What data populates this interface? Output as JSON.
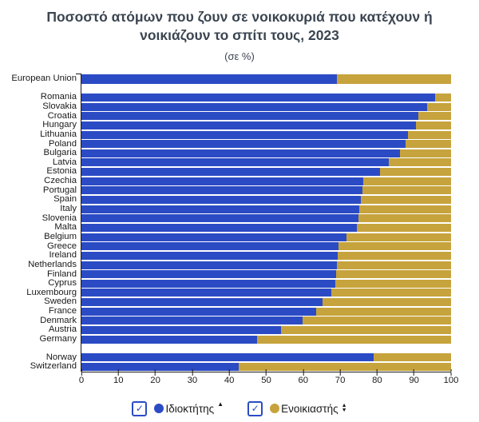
{
  "header": {
    "title": "Ποσοστό ατόμων που ζουν σε νοικοκυριά που κατέχουν ή νοικιάζουν το σπίτι τους, 2023",
    "subtitle": "(σε %)"
  },
  "colors": {
    "owner": "#2b4bc5",
    "renter": "#c6a33c",
    "title_text": "#3b4551",
    "axis_line": "#1a1a1a",
    "label_text": "#1a1a1a"
  },
  "legend": {
    "items": [
      {
        "label": "Ιδιοκτήτης",
        "color_key": "owner",
        "checked": true,
        "check_glyph": "✓",
        "sort_indicator": "up"
      },
      {
        "label": "Ενοικιαστής",
        "color_key": "renter",
        "checked": true,
        "check_glyph": "✓",
        "sort_indicator": "up-down"
      }
    ]
  },
  "chart_data": {
    "type": "bar",
    "orientation": "horizontal",
    "stacked": true,
    "unit": "%",
    "xlim": [
      0,
      100
    ],
    "x_ticks": [
      0,
      10,
      20,
      30,
      40,
      50,
      60,
      70,
      80,
      90,
      100
    ],
    "grid": false,
    "legend_position": "bottom",
    "series_names": [
      "Ιδιοκτήτης",
      "Ενοικιαστής"
    ],
    "groups": [
      {
        "name": "eu-aggregate",
        "rows": [
          {
            "category": "European Union",
            "owner": 69.2,
            "renter": 30.8
          }
        ]
      },
      {
        "name": "eu-members",
        "rows": [
          {
            "category": "Romania",
            "owner": 95.6,
            "renter": 4.4
          },
          {
            "category": "Slovakia",
            "owner": 93.6,
            "renter": 6.4
          },
          {
            "category": "Croatia",
            "owner": 91.1,
            "renter": 8.9
          },
          {
            "category": "Hungary",
            "owner": 90.4,
            "renter": 9.6
          },
          {
            "category": "Lithuania",
            "owner": 88.4,
            "renter": 11.6
          },
          {
            "category": "Poland",
            "owner": 87.7,
            "renter": 12.3
          },
          {
            "category": "Bulgaria",
            "owner": 86.1,
            "renter": 13.9
          },
          {
            "category": "Latvia",
            "owner": 83.2,
            "renter": 16.8
          },
          {
            "category": "Estonia",
            "owner": 80.7,
            "renter": 19.3
          },
          {
            "category": "Czechia",
            "owner": 76.2,
            "renter": 23.8
          },
          {
            "category": "Portugal",
            "owner": 76.0,
            "renter": 24.0
          },
          {
            "category": "Spain",
            "owner": 75.5,
            "renter": 24.5
          },
          {
            "category": "Italy",
            "owner": 75.2,
            "renter": 24.8
          },
          {
            "category": "Slovenia",
            "owner": 75.0,
            "renter": 25.0
          },
          {
            "category": "Malta",
            "owner": 74.6,
            "renter": 25.4
          },
          {
            "category": "Belgium",
            "owner": 71.8,
            "renter": 28.2
          },
          {
            "category": "Greece",
            "owner": 69.6,
            "renter": 30.4
          },
          {
            "category": "Ireland",
            "owner": 69.4,
            "renter": 30.6
          },
          {
            "category": "Netherlands",
            "owner": 69.2,
            "renter": 30.8
          },
          {
            "category": "Finland",
            "owner": 69.0,
            "renter": 31.0
          },
          {
            "category": "Cyprus",
            "owner": 68.6,
            "renter": 31.4
          },
          {
            "category": "Luxembourg",
            "owner": 67.7,
            "renter": 32.3
          },
          {
            "category": "Sweden",
            "owner": 65.2,
            "renter": 34.8
          },
          {
            "category": "France",
            "owner": 63.4,
            "renter": 36.6
          },
          {
            "category": "Denmark",
            "owner": 59.8,
            "renter": 40.2
          },
          {
            "category": "Austria",
            "owner": 54.1,
            "renter": 45.9
          },
          {
            "category": "Germany",
            "owner": 47.6,
            "renter": 52.4
          }
        ]
      },
      {
        "name": "efta",
        "rows": [
          {
            "category": "Norway",
            "owner": 79.1,
            "renter": 20.9
          },
          {
            "category": "Switzerland",
            "owner": 42.6,
            "renter": 57.4
          }
        ]
      }
    ]
  }
}
